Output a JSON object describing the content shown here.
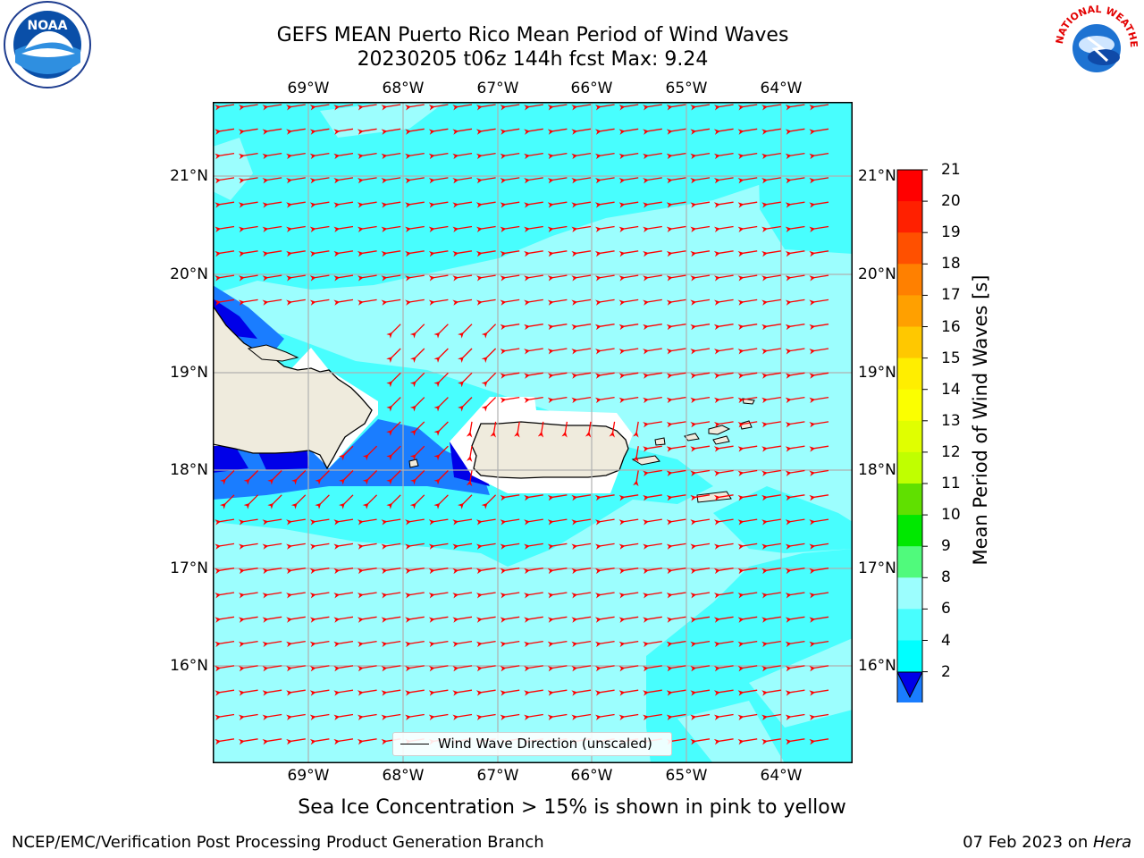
{
  "title": "GEFS MEAN Puerto Rico Mean Period of Wind Waves",
  "subtitle": "20230205 t06z 144h fcst   Max: 9.24",
  "map": {
    "lon_labels": [
      "69°W",
      "68°W",
      "67°W",
      "66°W",
      "65°W",
      "64°W"
    ],
    "lat_labels": [
      "21°N",
      "20°N",
      "19°N",
      "18°N",
      "17°N",
      "16°N"
    ],
    "legend_label": "Wind Wave Direction (unscaled)",
    "colors": {
      "land": "#efebdd",
      "coast": "#000000",
      "grid": "#b0b0b0",
      "arrow": "#ff0000",
      "light_cyan": "#9cfefe",
      "cyan": "#48fefe",
      "blue": "#1a7dff",
      "deep_blue": "#0000e8"
    }
  },
  "colorbar": {
    "title": "Mean Period of Wind Waves [s]",
    "tick_labels": [
      "21",
      "20",
      "19",
      "18",
      "17",
      "16",
      "15",
      "14",
      "13",
      "12",
      "11",
      "10",
      "9",
      "8",
      "6",
      "4",
      "2"
    ],
    "colors": [
      "#ff0000",
      "#ff2000",
      "#ff5000",
      "#ff8000",
      "#ffa000",
      "#ffc800",
      "#ffee00",
      "#fbff00",
      "#e0ff00",
      "#c0ff00",
      "#60e000",
      "#00e800",
      "#50fa7c",
      "#9cfefe",
      "#48fefe",
      "#00ffff",
      "#1a7dff"
    ],
    "under_color": "#0000e8"
  },
  "note": "Sea Ice Concentration > 15% is shown in pink to yellow",
  "footer_left": "NCEP/EMC/Verification Post Processing Product Generation Branch",
  "footer_right_prefix": "07 Feb 2023 on ",
  "footer_right_host": "Hera",
  "logos": {
    "noaa": "NOAA",
    "nws": "NATIONAL WEATHER SERVICE"
  }
}
